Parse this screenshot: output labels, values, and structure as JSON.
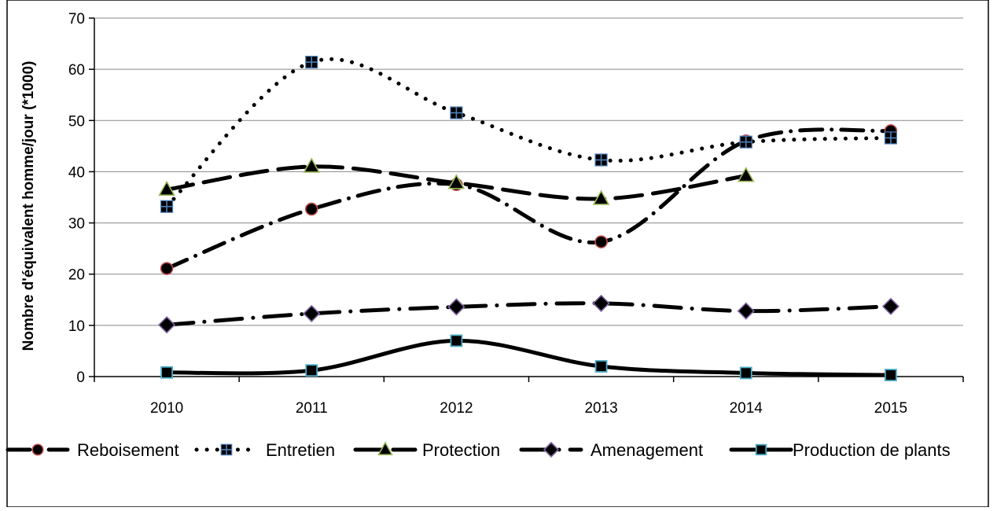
{
  "chart_data": {
    "type": "line",
    "title": "",
    "xlabel": "",
    "ylabel": "Nombre d'équivalent homme/jour (*1000)",
    "ylim": [
      0,
      70
    ],
    "yticks": [
      0,
      10,
      20,
      30,
      40,
      50,
      60,
      70
    ],
    "grid": "horizontal",
    "legend_position": "bottom",
    "categories": [
      "2010",
      "2011",
      "2012",
      "2013",
      "2014",
      "2015"
    ],
    "series": [
      {
        "name": "Reboisement",
        "values": [
          21.1,
          32.7,
          37.5,
          26.3,
          46.0,
          48.0
        ],
        "line_style": "dash-dot",
        "marker": "circle",
        "marker_fill": "#000000",
        "marker_stroke": "#c0504d"
      },
      {
        "name": "Entretien",
        "values": [
          33.2,
          61.4,
          51.5,
          42.3,
          45.8,
          46.6
        ],
        "line_style": "dotted",
        "marker": "square-cross",
        "marker_fill": "#000000",
        "marker_stroke": "#4f81bd"
      },
      {
        "name": "Protection",
        "values": [
          36.5,
          41.0,
          37.8,
          34.7,
          39.2,
          null
        ],
        "line_style": "long-dash",
        "marker": "triangle",
        "marker_fill": "#000000",
        "marker_stroke": "#9bbb59"
      },
      {
        "name": "Amenagement",
        "values": [
          10.1,
          12.3,
          13.6,
          14.3,
          12.8,
          13.7
        ],
        "line_style": "long-dash-dot",
        "marker": "diamond",
        "marker_fill": "#000000",
        "marker_stroke": "#8064a2"
      },
      {
        "name": "Production de plants",
        "values": [
          0.8,
          1.2,
          7.0,
          2.0,
          0.7,
          0.3
        ],
        "line_style": "solid",
        "marker": "square",
        "marker_fill": "#000000",
        "marker_stroke": "#4bacc6"
      }
    ]
  }
}
